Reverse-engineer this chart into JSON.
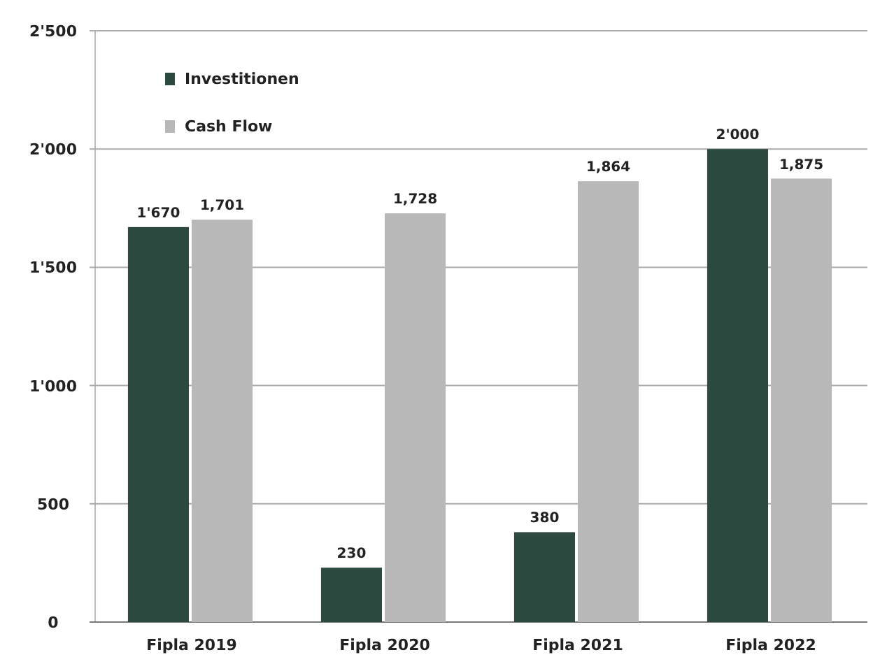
{
  "chart_data": {
    "type": "bar",
    "categories": [
      "Fipla 2019",
      "Fipla 2020",
      "Fipla 2021",
      "Fipla 2022"
    ],
    "series": [
      {
        "name": "Investitionen",
        "color": "#2d4a40",
        "values": [
          1670,
          230,
          380,
          2000
        ],
        "value_labels": [
          "1'670",
          "230",
          "380",
          "2'000"
        ]
      },
      {
        "name": "Cash Flow",
        "color": "#b8b8b8",
        "values": [
          1701,
          1728,
          1864,
          1875
        ],
        "value_labels": [
          "1,701",
          "1,728",
          "1,864",
          "1,875"
        ]
      }
    ],
    "ylim": [
      0,
      2500
    ],
    "yticks": [
      {
        "value": 0,
        "label": "0"
      },
      {
        "value": 500,
        "label": "500"
      },
      {
        "value": 1000,
        "label": "1'000"
      },
      {
        "value": 1500,
        "label": "1'500"
      },
      {
        "value": 2000,
        "label": "2'000"
      },
      {
        "value": 2500,
        "label": "2'500"
      }
    ],
    "grid": "y",
    "legend": "top left"
  }
}
